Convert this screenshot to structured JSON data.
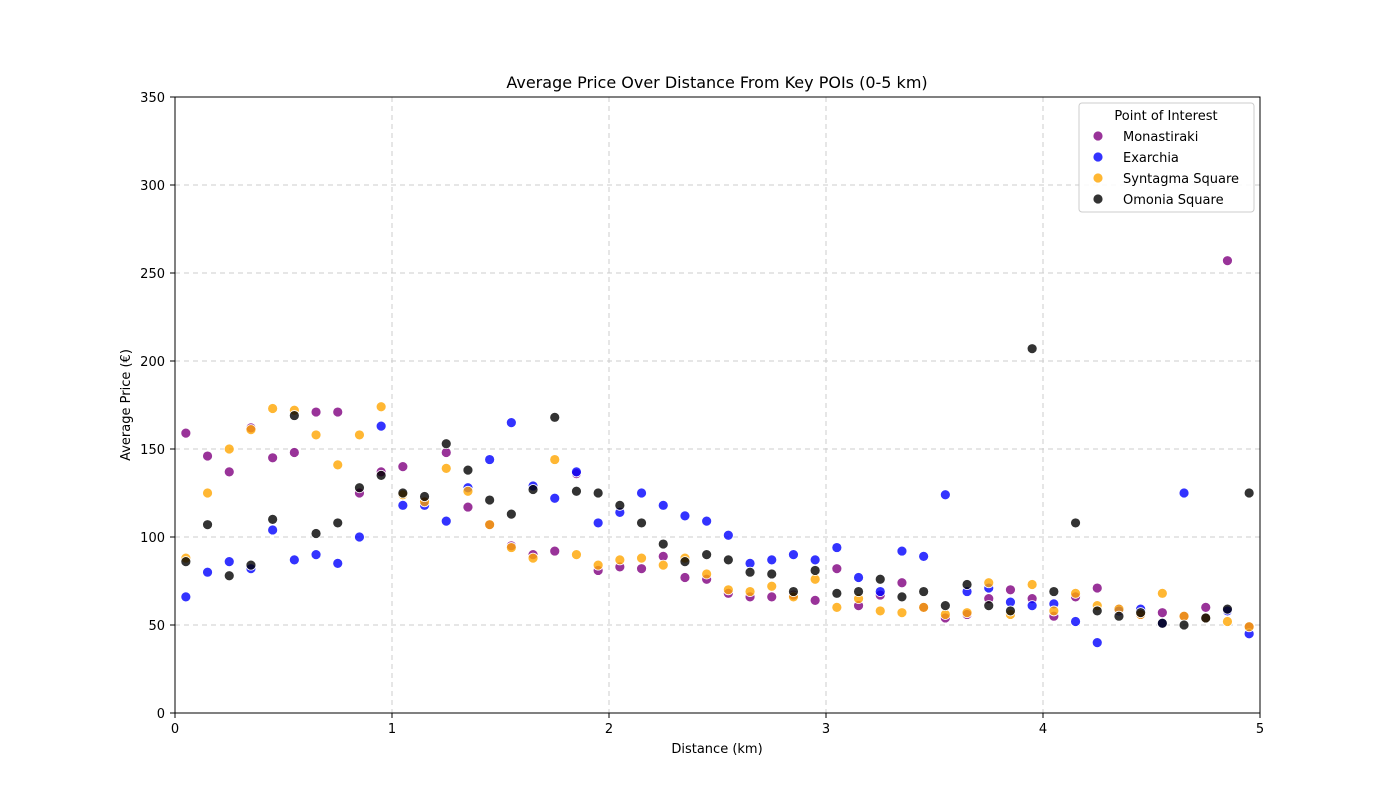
{
  "chart_data": {
    "type": "scatter",
    "title": "Average Price Over Distance From Key POIs (0-5 km)",
    "xlabel": "Distance (km)",
    "ylabel": "Average Price (€)",
    "xlim": [
      0,
      5
    ],
    "ylim": [
      0,
      350
    ],
    "xticks": [
      0,
      1,
      2,
      3,
      4,
      5
    ],
    "yticks": [
      0,
      50,
      100,
      150,
      200,
      250,
      300,
      350
    ],
    "grid": true,
    "legend": {
      "title": "Point of Interest",
      "placement": "top-right"
    },
    "x": [
      0.05,
      0.15,
      0.25,
      0.35,
      0.45,
      0.55,
      0.65,
      0.75,
      0.85,
      0.95,
      1.05,
      1.15,
      1.25,
      1.35,
      1.45,
      1.55,
      1.65,
      1.75,
      1.85,
      1.95,
      2.05,
      2.15,
      2.25,
      2.35,
      2.45,
      2.55,
      2.65,
      2.75,
      2.85,
      2.95,
      3.05,
      3.15,
      3.25,
      3.35,
      3.45,
      3.55,
      3.65,
      3.75,
      3.85,
      3.95,
      4.05,
      4.15,
      4.25,
      4.35,
      4.45,
      4.55,
      4.65,
      4.75,
      4.85,
      4.95
    ],
    "series": [
      {
        "name": "Monastiraki",
        "color": "#800080",
        "values": [
          159,
          146,
          137,
          162,
          145,
          148,
          171,
          171,
          125,
          137,
          140,
          120,
          148,
          117,
          107,
          95,
          90,
          92,
          136,
          81,
          83,
          82,
          89,
          77,
          76,
          68,
          66,
          66,
          67,
          64,
          82,
          61,
          67,
          74,
          60,
          54,
          56,
          65,
          70,
          65,
          55,
          66,
          71,
          59,
          56,
          57,
          55,
          60,
          257,
          49
        ]
      },
      {
        "name": "Exarchia",
        "color": "#0000ff",
        "values": [
          66,
          80,
          86,
          82,
          104,
          87,
          90,
          85,
          100,
          163,
          118,
          118,
          109,
          128,
          144,
          165,
          129,
          122,
          137,
          108,
          114,
          125,
          118,
          112,
          109,
          101,
          85,
          87,
          90,
          87,
          94,
          77,
          69,
          92,
          89,
          124,
          69,
          71,
          63,
          61,
          62,
          52,
          40,
          58,
          59,
          51,
          125,
          54,
          58,
          45
        ]
      },
      {
        "name": "Syntagma Square",
        "color": "#ffa500",
        "values": [
          88,
          125,
          150,
          161,
          173,
          172,
          158,
          141,
          158,
          174,
          124,
          120,
          139,
          126,
          107,
          94,
          88,
          144,
          90,
          84,
          87,
          88,
          84,
          88,
          79,
          70,
          69,
          72,
          66,
          76,
          60,
          65,
          58,
          57,
          60,
          56,
          57,
          74,
          56,
          73,
          58,
          68,
          61,
          59,
          56,
          68,
          55,
          54,
          52,
          49
        ]
      },
      {
        "name": "Omonia Square",
        "color": "#000000",
        "values": [
          86,
          107,
          78,
          84,
          110,
          169,
          102,
          108,
          128,
          135,
          125,
          123,
          153,
          138,
          121,
          113,
          127,
          168,
          126,
          125,
          118,
          108,
          96,
          86,
          90,
          87,
          80,
          79,
          69,
          81,
          68,
          69,
          76,
          66,
          69,
          61,
          73,
          61,
          58,
          207,
          69,
          108,
          58,
          55,
          57,
          51,
          50,
          54,
          59,
          125
        ]
      }
    ]
  }
}
